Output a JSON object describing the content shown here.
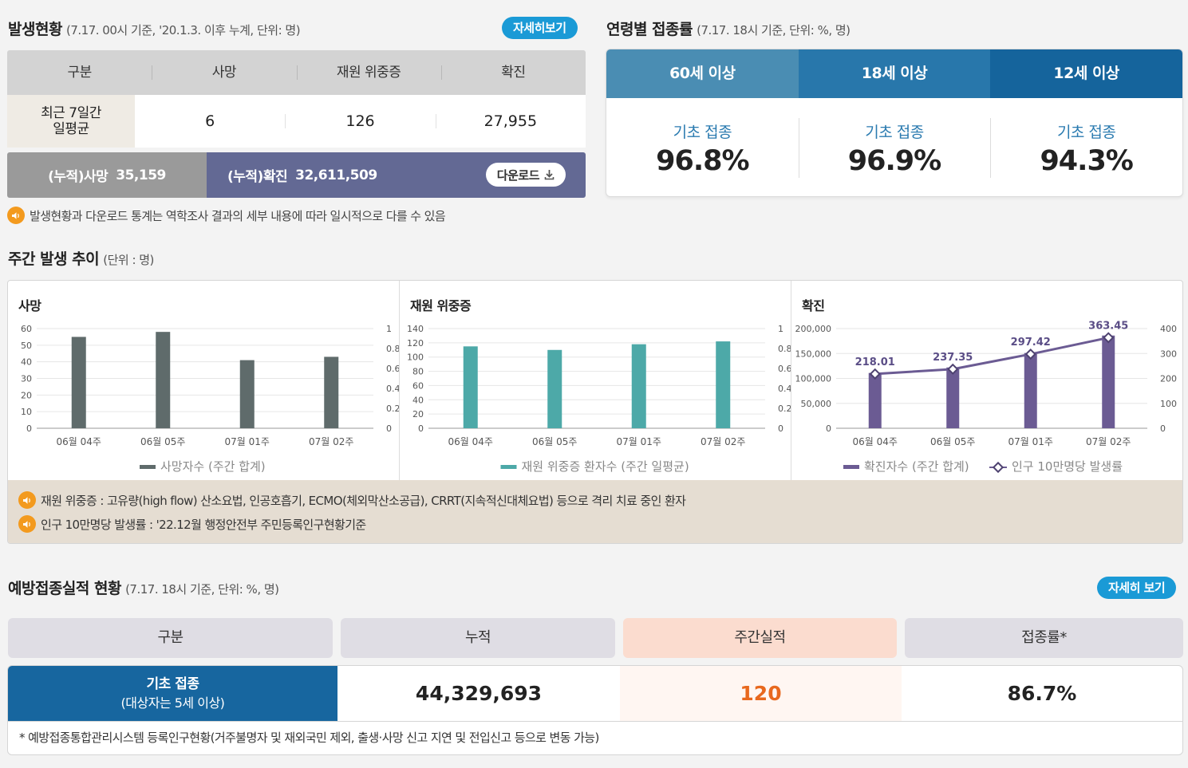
{
  "status": {
    "title": "발생현황",
    "subtitle": "(7.17. 00시 기준, '20.1.3. 이후 누계, 단위: 명)",
    "detail_button": "자세히보기",
    "headers": [
      "구분",
      "사망",
      "재원 위중증",
      "확진"
    ],
    "row_label": "최근 7일간\n일평균",
    "row_label_line1": "최근 7일간",
    "row_label_line2": "일평균",
    "values": [
      "6",
      "126",
      "27,955"
    ],
    "cum_death_label": "(누적)사망",
    "cum_death_value": "35,159",
    "cum_conf_label": "(누적)확진",
    "cum_conf_value": "32,611,509",
    "download_label": "다운로드",
    "note": "발생현황과 다운로드 통계는 역학조사 결과의 세부 내용에 따라 일시적으로 다를 수 있음"
  },
  "age": {
    "title": "연령별 접종률",
    "subtitle": "(7.17. 18시 기준, 단위: %, 명)",
    "tabs": [
      "60세 이상",
      "18세 이상",
      "12세 이상"
    ],
    "tab_colors": [
      "#4a8db3",
      "#2877ab",
      "#15649c"
    ],
    "label": "기초 접종",
    "values": [
      "96.8%",
      "96.9%",
      "94.3%"
    ]
  },
  "weekly": {
    "title": "주간 발생 추이",
    "subtitle": "(단위 : 명)",
    "notes": [
      "재원 위중증 : 고유량(high flow) 산소요법, 인공호흡기, ECMO(체외막산소공급), CRRT(지속적신대체요법) 등으로 격리 치료 중인 환자",
      "인구 10만명당 발생률 : '22.12월 행정안전부 주민등록인구현황기준"
    ]
  },
  "chart_data": [
    {
      "type": "bar",
      "title": "사망",
      "categories": [
        "06월 04주",
        "06월 05주",
        "07월 01주",
        "07월 02주"
      ],
      "series": [
        {
          "name": "사망자수 (주간 합계)",
          "values": [
            55,
            58,
            41,
            43
          ],
          "color": "#5f6b6b"
        }
      ],
      "ylim": [
        0,
        60
      ],
      "yticks": [
        "60",
        "50",
        "40",
        "30",
        "20",
        "10",
        "0"
      ],
      "y2ticks": [
        "1",
        "0.8",
        "0.6",
        "0.4",
        "0.2",
        "0"
      ],
      "legend": "bottom"
    },
    {
      "type": "bar",
      "title": "재원 위중증",
      "categories": [
        "06월 04주",
        "06월 05주",
        "07월 01주",
        "07월 02주"
      ],
      "series": [
        {
          "name": "재원 위중증 환자수 (주간 일평균)",
          "values": [
            115,
            110,
            118,
            122
          ],
          "color": "#4da9a8"
        }
      ],
      "ylim": [
        0,
        140
      ],
      "yticks": [
        "140",
        "120",
        "100",
        "80",
        "60",
        "40",
        "20",
        "0"
      ],
      "y2ticks": [
        "1",
        "0.8",
        "0.6",
        "0.4",
        "0.2",
        "0"
      ],
      "legend": "bottom"
    },
    {
      "type": "bar",
      "title": "확진",
      "categories": [
        "06월 04주",
        "06월 05주",
        "07월 01주",
        "07월 02주"
      ],
      "series": [
        {
          "name": "확진자수 (주간 합계)",
          "values": [
            111000,
            122000,
            151000,
            186000
          ],
          "color": "#6b5b93"
        },
        {
          "name": "인구 10만명당 발생률",
          "values": [
            218.01,
            237.35,
            297.42,
            363.45
          ],
          "labels": [
            "218.01",
            "237.35",
            "297.42",
            "363.45"
          ],
          "color": "#6b5b93",
          "type": "line"
        }
      ],
      "ylim": [
        0,
        200000
      ],
      "y2lim": [
        0,
        400
      ],
      "yticks": [
        "200,000",
        "150,000",
        "100,000",
        "50,000",
        "0"
      ],
      "y2ticks": [
        "400",
        "300",
        "200",
        "100",
        "0"
      ],
      "legend": "bottom"
    }
  ],
  "vaccination": {
    "title": "예방접종실적 현황",
    "subtitle": "(7.17. 18시 기준, 단위: %, 명)",
    "detail_button": "자세히 보기",
    "headers": [
      "구분",
      "누적",
      "주간실적",
      "접종률*"
    ],
    "row_label": "기초 접종",
    "row_sublabel": "(대상자는 5세 이상)",
    "cumulative": "44,329,693",
    "weekly": "120",
    "rate": "86.7%",
    "footnote": "* 예방접종통합관리시스템 등록인구현황(거주불명자 및 재외국민 제외, 출생·사망 신고 지연 및 전입신고 등으로 변동 가능)"
  }
}
